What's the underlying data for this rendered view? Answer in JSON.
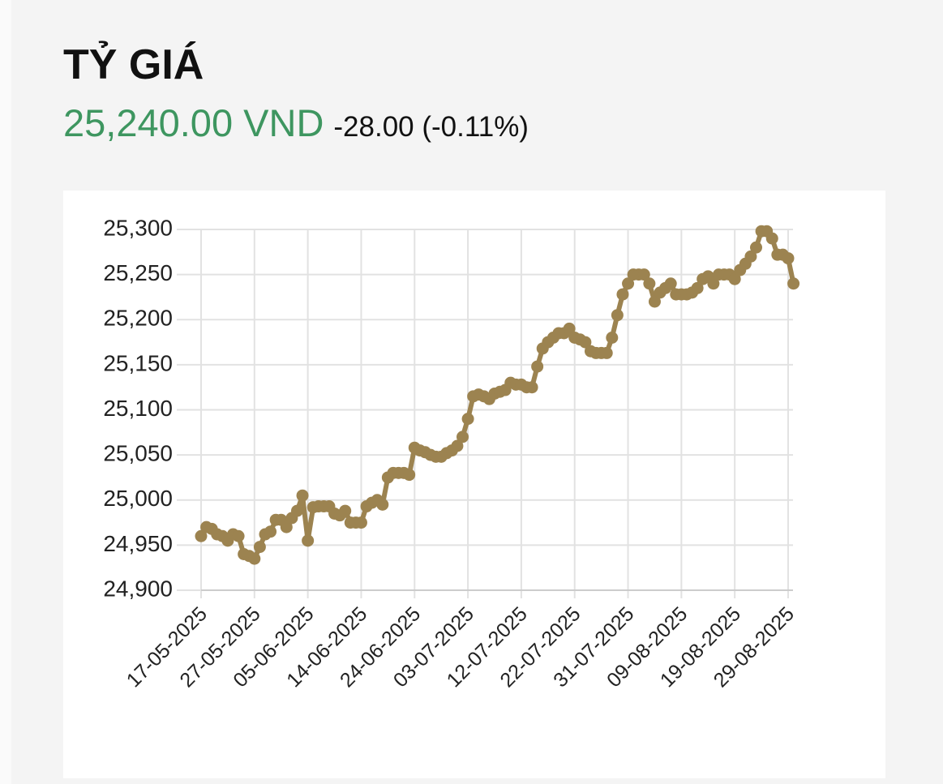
{
  "header": {
    "title": "TỶ GIÁ",
    "price": "25,240.00 VND",
    "change": "-28.00 (-0.11%)"
  },
  "chart_data": {
    "type": "line",
    "color": "#9c8350",
    "grid": true,
    "categories": [
      "17-05-2025",
      null,
      null,
      null,
      null,
      null,
      null,
      null,
      null,
      null,
      "27-05-2025",
      null,
      null,
      null,
      null,
      null,
      null,
      null,
      null,
      null,
      "05-06-2025",
      null,
      null,
      null,
      null,
      null,
      null,
      null,
      null,
      null,
      "14-06-2025",
      null,
      null,
      null,
      null,
      null,
      null,
      null,
      null,
      null,
      "24-06-2025",
      null,
      null,
      null,
      null,
      null,
      null,
      null,
      null,
      null,
      "03-07-2025",
      null,
      null,
      null,
      null,
      null,
      null,
      null,
      null,
      null,
      "12-07-2025",
      null,
      null,
      null,
      null,
      null,
      null,
      null,
      null,
      null,
      "22-07-2025",
      null,
      null,
      null,
      null,
      null,
      null,
      null,
      null,
      null,
      "31-07-2025",
      null,
      null,
      null,
      null,
      null,
      null,
      null,
      null,
      null,
      "09-08-2025",
      null,
      null,
      null,
      null,
      null,
      null,
      null,
      null,
      null,
      "19-08-2025",
      null,
      null,
      null,
      null,
      null,
      null,
      null,
      null,
      null,
      "29-08-2025",
      null
    ],
    "values": [
      24960,
      24970,
      24968,
      24962,
      24960,
      24955,
      24962,
      24960,
      24940,
      24938,
      24935,
      24948,
      24962,
      24965,
      24978,
      24978,
      24970,
      24980,
      24988,
      25005,
      24955,
      24992,
      24993,
      24993,
      24993,
      24985,
      24983,
      24988,
      24975,
      24975,
      24975,
      24993,
      24997,
      25000,
      24995,
      25025,
      25030,
      25030,
      25030,
      25028,
      25058,
      25055,
      25053,
      25050,
      25048,
      25048,
      25052,
      25055,
      25060,
      25070,
      25090,
      25115,
      25117,
      25115,
      25112,
      25118,
      25120,
      25122,
      25130,
      25128,
      25128,
      25125,
      25125,
      25148,
      25168,
      25175,
      25180,
      25185,
      25185,
      25190,
      25180,
      25178,
      25175,
      25165,
      25163,
      25163,
      25163,
      25180,
      25205,
      25228,
      25240,
      25250,
      25250,
      25250,
      25240,
      25220,
      25230,
      25235,
      25240,
      25228,
      25228,
      25228,
      25230,
      25235,
      25245,
      25248,
      25240,
      25250,
      25250,
      25250,
      25245,
      25255,
      25262,
      25270,
      25280,
      25298,
      25298,
      25290,
      25272,
      25272,
      25268,
      25240
    ],
    "ylim": [
      24900,
      25300
    ],
    "yticks": [
      {
        "value": 24900,
        "label": "24,900"
      },
      {
        "value": 24950,
        "label": "24,950"
      },
      {
        "value": 25000,
        "label": "25,000"
      },
      {
        "value": 25050,
        "label": "25,050"
      },
      {
        "value": 25100,
        "label": "25,100"
      },
      {
        "value": 25150,
        "label": "25,150"
      },
      {
        "value": 25200,
        "label": "25,200"
      },
      {
        "value": 25250,
        "label": "25,250"
      },
      {
        "value": 25300,
        "label": "25,300"
      }
    ]
  }
}
